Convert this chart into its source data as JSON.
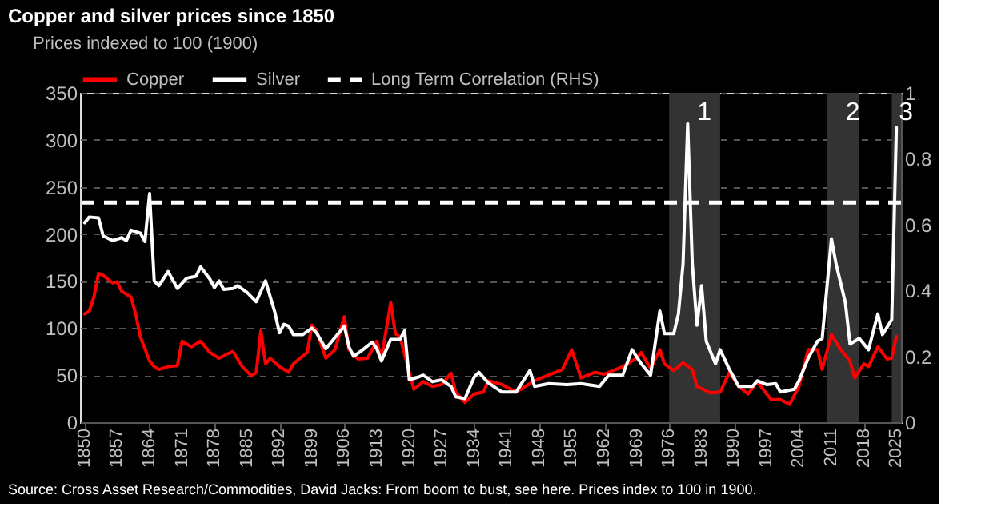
{
  "chart_data": {
    "type": "line",
    "title": "Copper and silver prices since 1850",
    "ylabel": "Prices indexed to 100 (1900)",
    "series": [
      {
        "name": "Copper",
        "color": "#ff0000",
        "x": [
          1850,
          1851,
          1852,
          1853,
          1854,
          1856,
          1857,
          1858,
          1860,
          1861,
          1862,
          1864,
          1865,
          1866,
          1868,
          1870,
          1871,
          1873,
          1875,
          1877,
          1879,
          1881,
          1882,
          1884,
          1886,
          1887,
          1888,
          1889,
          1890,
          1892,
          1894,
          1895,
          1898,
          1899,
          1900,
          1902,
          1904,
          1906,
          1907,
          1909,
          1911,
          1913,
          1914,
          1916,
          1917,
          1918,
          1920,
          1921,
          1923,
          1925,
          1927,
          1929,
          1930,
          1932,
          1934,
          1936,
          1937,
          1940,
          1943,
          1947,
          1950,
          1953,
          1955,
          1957,
          1960,
          1962,
          1964,
          1966,
          1969,
          1970,
          1972,
          1974,
          1975,
          1977,
          1979,
          1981,
          1982,
          1985,
          1987,
          1989,
          1991,
          1993,
          1995,
          1998,
          2000,
          2002,
          2004,
          2006,
          2008,
          2009,
          2011,
          2013,
          2015,
          2016,
          2018,
          2019,
          2021,
          2023,
          2024,
          2025
        ],
        "values": [
          115,
          118,
          133,
          158,
          156,
          148,
          149,
          139,
          133,
          115,
          91,
          65,
          59,
          56,
          59,
          60,
          86,
          80,
          86,
          74,
          68,
          73,
          75,
          59,
          49,
          53,
          97,
          62,
          68,
          59,
          53,
          62,
          74,
          103,
          97,
          68,
          77,
          112,
          77,
          67,
          68,
          86,
          68,
          127,
          94,
          91,
          53,
          35,
          43,
          38,
          40,
          52,
          32,
          21,
          30,
          32,
          44,
          40,
          32,
          44,
          50,
          56,
          77,
          47,
          53,
          51,
          55,
          59,
          68,
          74,
          57,
          77,
          62,
          55,
          63,
          56,
          38,
          31,
          32,
          53,
          38,
          30,
          43,
          24,
          24,
          19,
          38,
          77,
          77,
          56,
          93,
          77,
          65,
          47,
          62,
          59,
          80,
          67,
          68,
          91
        ]
      },
      {
        "name": "Silver",
        "color": "#ffffff",
        "x": [
          1850,
          1851,
          1853,
          1854,
          1856,
          1858,
          1859,
          1860,
          1862,
          1863,
          1864,
          1865,
          1866,
          1868,
          1870,
          1872,
          1874,
          1875,
          1877,
          1878,
          1879,
          1880,
          1882,
          1883,
          1885,
          1887,
          1889,
          1891,
          1892,
          1893,
          1894,
          1895,
          1897,
          1899,
          1900,
          1902,
          1904,
          1906,
          1907,
          1908,
          1910,
          1912,
          1913,
          1914,
          1916,
          1918,
          1919,
          1920,
          1922,
          1923,
          1925,
          1927,
          1929,
          1930,
          1932,
          1934,
          1935,
          1937,
          1940,
          1943,
          1946,
          1947,
          1950,
          1954,
          1957,
          1961,
          1963,
          1966,
          1968,
          1970,
          1972,
          1974,
          1975,
          1977,
          1978,
          1979,
          1980,
          1981,
          1982,
          1983,
          1984,
          1986,
          1987,
          1989,
          1991,
          1994,
          1995,
          1997,
          1999,
          2000,
          2003,
          2004,
          2006,
          2008,
          2009,
          2011,
          2012,
          2014,
          2015,
          2017,
          2019,
          2021,
          2022,
          2024,
          2025
        ],
        "values": [
          212,
          218,
          217,
          198,
          193,
          196,
          193,
          204,
          201,
          192,
          243,
          150,
          145,
          160,
          142,
          153,
          155,
          165,
          152,
          143,
          150,
          141,
          142,
          145,
          138,
          128,
          150,
          117,
          95,
          104,
          102,
          93,
          93,
          100,
          95,
          78,
          90,
          102,
          80,
          70,
          77,
          85,
          78,
          65,
          88,
          88,
          97,
          45,
          48,
          50,
          43,
          45,
          38,
          27,
          25,
          48,
          53,
          42,
          32,
          32,
          55,
          38,
          41,
          40,
          41,
          38,
          50,
          50,
          77,
          62,
          50,
          118,
          94,
          94,
          115,
          168,
          317,
          168,
          103,
          145,
          86,
          62,
          77,
          56,
          38,
          38,
          44,
          40,
          41,
          32,
          35,
          44,
          68,
          86,
          89,
          195,
          168,
          127,
          83,
          89,
          77,
          115,
          93,
          109,
          313
        ]
      }
    ],
    "ref_lines": [
      {
        "axis": "y2",
        "value": 0.667,
        "label": "Long Term Correlation (RHS)",
        "color": "#ffffff",
        "line_style": "dashed"
      }
    ],
    "bands": [
      {
        "axis": "x",
        "from": 1976,
        "to": 1987,
        "label": "1",
        "color": "#333333"
      },
      {
        "axis": "x",
        "from": 2010,
        "to": 2017,
        "label": "2",
        "color": "#333333"
      },
      {
        "axis": "x",
        "from": 2024,
        "to": 2026,
        "label": "3",
        "color": "#333333"
      }
    ],
    "xlim": [
      1849,
      2026
    ],
    "xticks": [
      1850,
      1857,
      1864,
      1871,
      1878,
      1885,
      1892,
      1899,
      1906,
      1913,
      1920,
      1927,
      1934,
      1941,
      1948,
      1955,
      1962,
      1969,
      1976,
      1983,
      1990,
      1997,
      2004,
      2011,
      2018,
      2025
    ],
    "ylim": [
      0,
      350
    ],
    "yticks": [
      0,
      50,
      100,
      150,
      200,
      250,
      300,
      350
    ],
    "y2lim": [
      0,
      1
    ],
    "y2ticks": [
      0,
      0.2,
      0.4,
      0.6,
      0.8,
      1
    ],
    "grid": "y",
    "legend": "top",
    "line_style": "solid",
    "marker": "none",
    "annotations": [
      "Source: Cross Asset Research/Commodities, David Jacks: From boom to bust, see here. Prices index to 100 in 1900."
    ]
  }
}
